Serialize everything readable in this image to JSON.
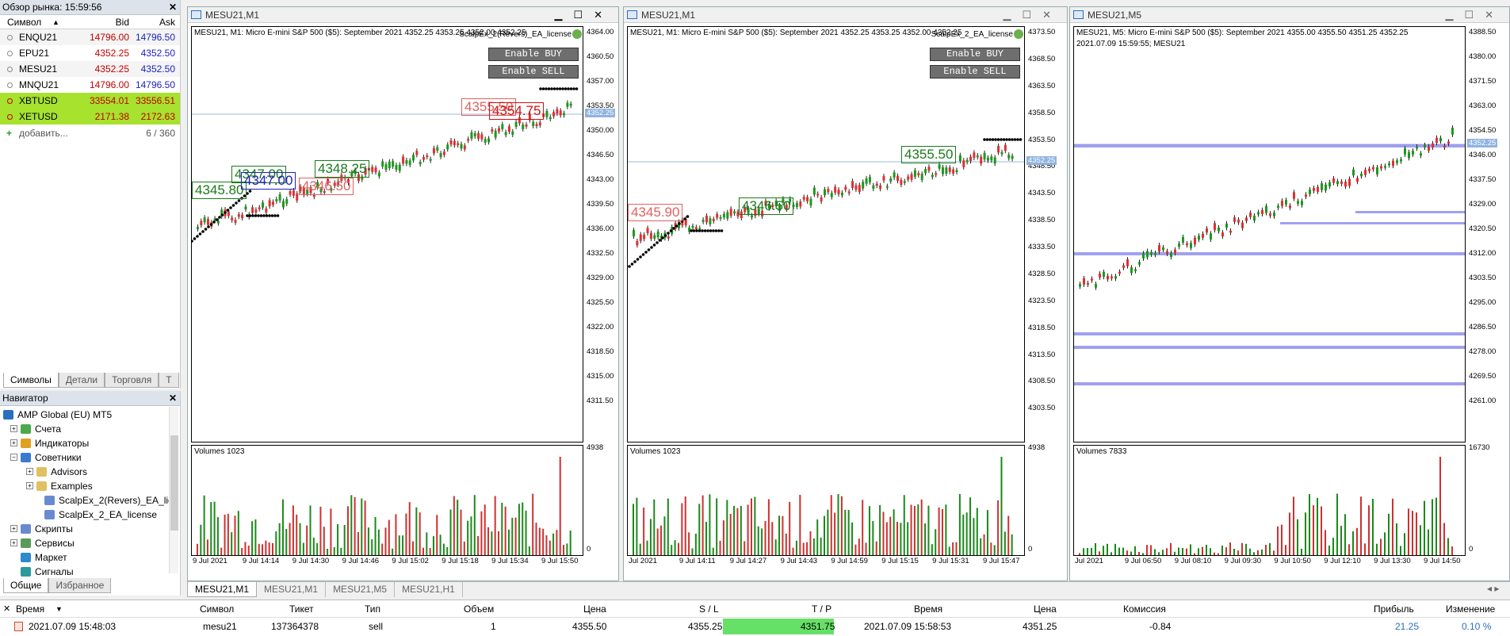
{
  "market_watch": {
    "title": "Обзор рынка: 15:59:56",
    "headers": {
      "symbol": "Символ",
      "bid": "Bid",
      "ask": "Ask"
    },
    "rows": [
      {
        "symbol": "ENQU21",
        "bid": "14796.00",
        "ask": "14796.50"
      },
      {
        "symbol": "EPU21",
        "bid": "4352.25",
        "ask": "4352.50"
      },
      {
        "symbol": "MESU21",
        "bid": "4352.25",
        "ask": "4352.50"
      },
      {
        "symbol": "MNQU21",
        "bid": "14796.00",
        "ask": "14796.50"
      },
      {
        "symbol": "XBTUSD",
        "bid": "33554.01",
        "ask": "33556.51"
      },
      {
        "symbol": "XETUSD",
        "bid": "2171.38",
        "ask": "2172.63"
      }
    ],
    "add_label": "добавить...",
    "count": "6 / 360",
    "tabs": [
      "Символы",
      "Детали",
      "Торговля",
      "Т"
    ]
  },
  "navigator": {
    "title": "Навигатор",
    "items": [
      {
        "label": "AMP Global (EU) MT5",
        "icon": "broker-icon"
      },
      {
        "label": "Счета",
        "icon": "accounts-icon"
      },
      {
        "label": "Индикаторы",
        "icon": "indicators-icon"
      },
      {
        "label": "Советники",
        "icon": "experts-icon"
      },
      {
        "label": "Advisors",
        "icon": "folder-icon"
      },
      {
        "label": "Examples",
        "icon": "folder-icon"
      },
      {
        "label": "ScalpEx_2(Revers)_EA_lice",
        "icon": "expert-icon"
      },
      {
        "label": "ScalpEx_2_EA_license",
        "icon": "expert-icon"
      },
      {
        "label": "Скрипты",
        "icon": "scripts-icon"
      },
      {
        "label": "Сервисы",
        "icon": "services-icon"
      },
      {
        "label": "Маркет",
        "icon": "market-icon"
      },
      {
        "label": "Сигналы",
        "icon": "signals-icon"
      }
    ],
    "tabs": [
      "Общие",
      "Избранное"
    ]
  },
  "charts": [
    {
      "title": "MESU21,M1",
      "info": "MESU21, M1:  Micro E-mini S&P 500 ($5): September 2021  4352.25  4353.25  4352.00  4352.25",
      "ea_name": "ScalpEx_2(Revers)_EA_license",
      "btn_buy": "Enable BUY",
      "btn_sell": "Enable SELL",
      "prices": [
        "4364.00",
        "4360.50",
        "4357.00",
        "4353.50",
        "4350.00",
        "4346.50",
        "4343.00",
        "4339.50",
        "4336.00",
        "4332.50",
        "4329.00",
        "4325.50",
        "4322.00",
        "4318.50",
        "4315.00",
        "4311.50"
      ],
      "current": "4352.25",
      "volume_label": "Volumes 1023",
      "vol_max": "4938",
      "vol_min": "0",
      "times": [
        "9 Jul 2021",
        "9 Jul 14:14",
        "9 Jul 14:30",
        "9 Jul 14:46",
        "9 Jul 15:02",
        "9 Jul 15:18",
        "9 Jul 15:34",
        "9 Jul 15:50"
      ],
      "boxes": [
        {
          "text": "4345.80",
          "color": "#1a7a1a"
        },
        {
          "text": "4347.00",
          "color": "#1a7a1a"
        },
        {
          "text": "4347.00",
          "color": "#2020c0"
        },
        {
          "text": "4348.25",
          "color": "#1a7a1a"
        },
        {
          "text": "4346.50",
          "color": "#e06060"
        },
        {
          "text": "4355.50",
          "color": "#e06060"
        },
        {
          "text": "4354.75",
          "color": "#d01010"
        }
      ]
    },
    {
      "title": "MESU21,M1",
      "info": "MESU21, M1:  Micro E-mini S&P 500 ($5): September 2021  4352.25  4353.25  4352.00  4352.25",
      "ea_name": "ScalpEx_2_EA_license",
      "btn_buy": "Enable BUY",
      "btn_sell": "Enable SELL",
      "prices": [
        "4373.50",
        "4368.50",
        "4363.50",
        "4358.50",
        "4353.50",
        "4348.50",
        "4343.50",
        "4338.50",
        "4333.50",
        "4328.50",
        "4323.50",
        "4318.50",
        "4313.50",
        "4308.50",
        "4303.50"
      ],
      "current": "4352.25",
      "volume_label": "Volumes 1023",
      "vol_max": "4938",
      "vol_min": "0",
      "times": [
        "Jul 2021",
        "9 Jul 14:11",
        "9 Jul 14:27",
        "9 Jul 14:43",
        "9 Jul 14:59",
        "9 Jul 15:15",
        "9 Jul 15:31",
        "9 Jul 15:47"
      ],
      "boxes": [
        {
          "text": "4345.90",
          "color": "#e06060"
        },
        {
          "text": "4346.50",
          "color": "#1a7a1a"
        },
        {
          "text": "4355.50",
          "color": "#1a7a1a"
        }
      ]
    },
    {
      "title": "MESU21,M5",
      "info": "MESU21, M5:  Micro E-mini S&P 500 ($5): September 2021  4355.00  4355.50  4351.25  4352.25",
      "info2": "2021.07.09 15:59:55; MESU21",
      "prices": [
        "4388.50",
        "4380.00",
        "4371.50",
        "4363.00",
        "4354.50",
        "4346.00",
        "4337.50",
        "4329.00",
        "4320.50",
        "4312.00",
        "4303.50",
        "4295.00",
        "4286.50",
        "4278.00",
        "4269.50",
        "4261.00"
      ],
      "current": "4352.25",
      "volume_label": "Volumes 7833",
      "vol_max": "16730",
      "vol_min": "0",
      "times": [
        "Jul 2021",
        "9 Jul 06:50",
        "9 Jul 08:10",
        "9 Jul 09:30",
        "9 Jul 10:50",
        "9 Jul 12:10",
        "9 Jul 13:30",
        "9 Jul 14:50"
      ]
    }
  ],
  "chart_tabs": [
    "MESU21,M1",
    "MESU21,M1",
    "MESU21,M5",
    "MESU21,H1"
  ],
  "toolbox": {
    "headers": {
      "time": "Время",
      "symbol": "Символ",
      "ticket": "Тикет",
      "type": "Тип",
      "volume": "Объем",
      "price": "Цена",
      "sl": "S / L",
      "tp": "T / P",
      "time2": "Время",
      "price2": "Цена",
      "commission": "Комиссия",
      "profit": "Прибыль",
      "change": "Изменение"
    },
    "row": {
      "time": "2021.07.09 15:48:03",
      "symbol": "mesu21",
      "ticket": "137364378",
      "type": "sell",
      "volume": "1",
      "price": "4355.50",
      "sl": "4355.25",
      "tp": "4351.75",
      "time2": "2021.07.09 15:58:53",
      "price2": "4351.25",
      "commission": "-0.84",
      "profit": "21.25",
      "change": "0.10 %"
    }
  }
}
